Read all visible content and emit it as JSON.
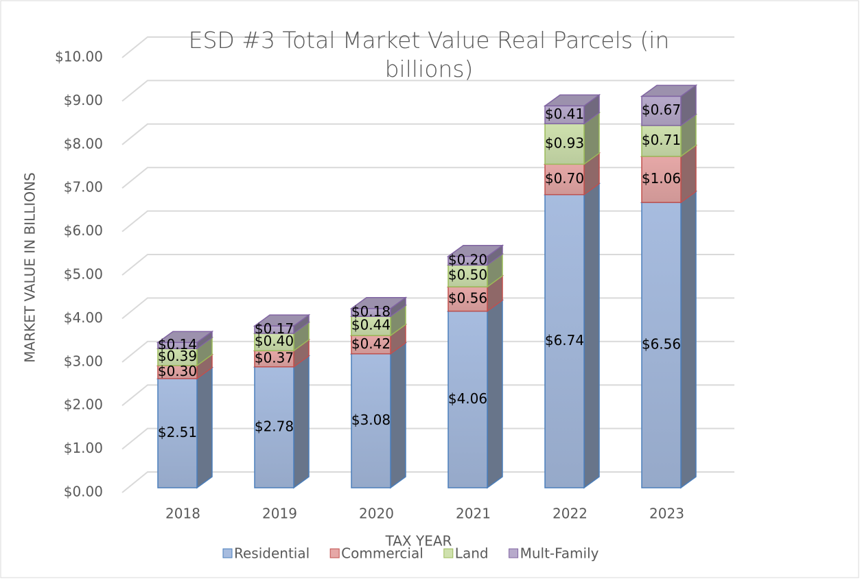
{
  "chart_data": {
    "type": "bar3d_stacked",
    "title": "ESD #3 Total Market Value Real Parcels (in billions)",
    "x_label": "TAX YEAR",
    "y_label": "MARKET VALUE IN BILLIONS",
    "categories": [
      "2018",
      "2019",
      "2020",
      "2021",
      "2022",
      "2023"
    ],
    "series": [
      {
        "name": "Residential",
        "color": "#a7bcdf",
        "stroke": "#4a7ebb",
        "values": [
          2.51,
          2.78,
          3.08,
          4.06,
          6.74,
          6.56
        ],
        "value_labels": [
          "$2.51",
          "$2.78",
          "$3.08",
          "$4.06",
          "$6.74",
          "$6.56"
        ]
      },
      {
        "name": "Commercial",
        "color": "#e6a8a7",
        "stroke": "#c0504d",
        "values": [
          0.3,
          0.37,
          0.42,
          0.56,
          0.7,
          1.06
        ],
        "value_labels": [
          "$0.30",
          "$0.37",
          "$0.42",
          "$0.56",
          "$0.70",
          "$1.06"
        ]
      },
      {
        "name": "Land",
        "color": "#cfe1ae",
        "stroke": "#9bbb59",
        "values": [
          0.39,
          0.4,
          0.44,
          0.5,
          0.93,
          0.71
        ],
        "value_labels": [
          "$0.39",
          "$0.40",
          "$0.44",
          "$0.50",
          "$0.93",
          "$0.71"
        ]
      },
      {
        "name": "Mult-Family",
        "color": "#b7aacb",
        "stroke": "#8064a2",
        "values": [
          0.14,
          0.17,
          0.18,
          0.2,
          0.41,
          0.67
        ],
        "value_labels": [
          "$0.14",
          "$0.17",
          "$0.18",
          "$0.20",
          "$0.41",
          "$0.67"
        ]
      }
    ],
    "ylim": [
      0,
      10
    ],
    "yticks": [
      {
        "value": 0,
        "label": "$0.00"
      },
      {
        "value": 1,
        "label": "$1.00"
      },
      {
        "value": 2,
        "label": "$2.00"
      },
      {
        "value": 3,
        "label": "$3.00"
      },
      {
        "value": 4,
        "label": "$4.00"
      },
      {
        "value": 5,
        "label": "$5.00"
      },
      {
        "value": 6,
        "label": "$6.00"
      },
      {
        "value": 7,
        "label": "$7.00"
      },
      {
        "value": 8,
        "label": "$8.00"
      },
      {
        "value": 9,
        "label": "$9.00"
      },
      {
        "value": 10,
        "label": "$10.00"
      }
    ],
    "grid": true,
    "legend": "bottom"
  }
}
